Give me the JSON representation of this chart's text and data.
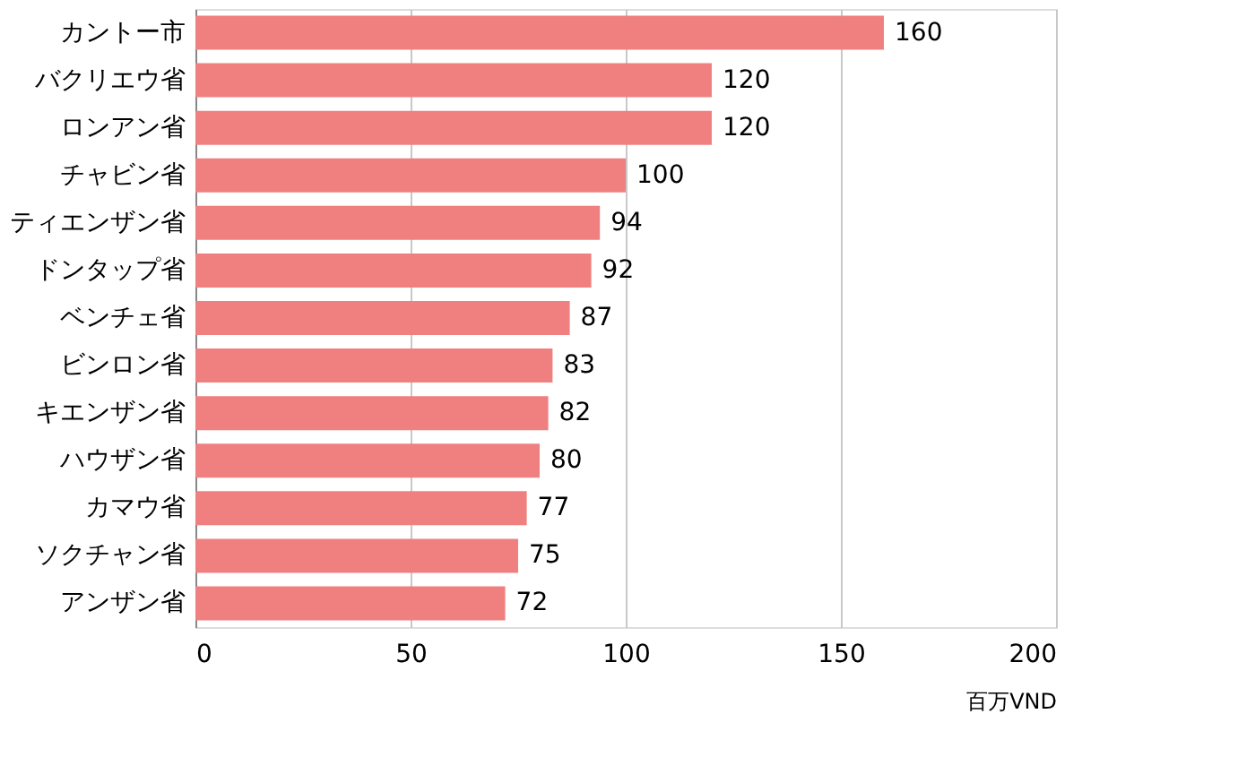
{
  "chart_data": {
    "type": "bar",
    "orientation": "horizontal",
    "xlabel": "百万VND",
    "categories": [
      "カントー市",
      "バクリエウ省",
      "ロンアン省",
      "チャビン省",
      "ティエンザン省",
      "ドンタップ省",
      "ベンチェ省",
      "ビンロン省",
      "キエンザン省",
      "ハウザン省",
      "カマウ省",
      "ソクチャン省",
      "アンザン省"
    ],
    "values": [
      160,
      120,
      120,
      100,
      94,
      92,
      87,
      83,
      82,
      80,
      77,
      75,
      72
    ],
    "color": "#f08080",
    "xlim": [
      0,
      200
    ],
    "xticks": [
      0,
      50,
      100,
      150,
      200
    ],
    "grid": "x",
    "data_labels": true
  }
}
